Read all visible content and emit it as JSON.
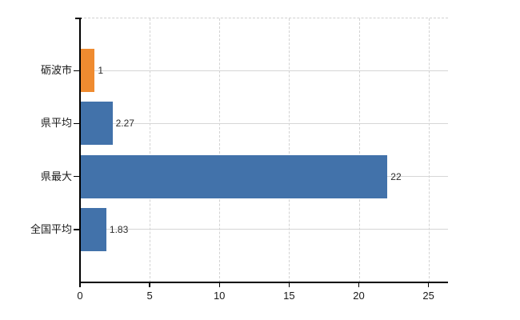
{
  "chart_data": {
    "type": "bar",
    "orientation": "horizontal",
    "categories": [
      "砺波市",
      "県平均",
      "県最大",
      "全国平均"
    ],
    "values": [
      1,
      2.27,
      22,
      1.83
    ],
    "value_labels": [
      "1",
      "2.27",
      "22",
      "1.83"
    ],
    "bar_colors": [
      "#ef8b30",
      "#4272aa",
      "#4272aa",
      "#4272aa"
    ],
    "x_tick_values": [
      0,
      5,
      10,
      15,
      20,
      25
    ],
    "x_tick_labels": [
      "0",
      "5",
      "10",
      "15",
      "20",
      "25"
    ],
    "xlim": [
      0,
      26.4
    ],
    "grid": {
      "vertical_style": "dashed",
      "horizontal_style": "solid",
      "color": "#d6d6d6"
    },
    "legend": "none",
    "axis_color": "#000000",
    "text_color": "#1a1a1a"
  }
}
